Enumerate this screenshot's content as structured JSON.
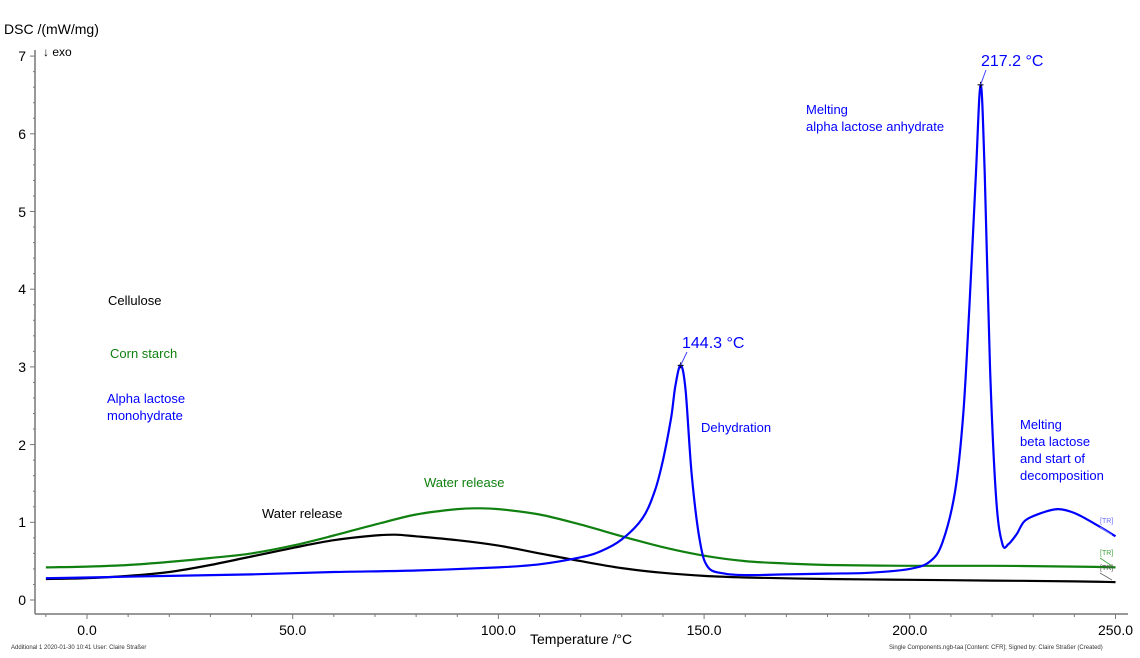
{
  "chart_data": {
    "type": "line",
    "title": "",
    "xlabel": "Temperature /°C",
    "ylabel": "DSC /(mW/mg)",
    "y_direction_note": "↓ exo",
    "xlim": [
      -10,
      252
    ],
    "ylim": [
      0,
      7
    ],
    "x_ticks": [
      "0.0",
      "50.0",
      "100.0",
      "150.0",
      "200.0",
      "250.0"
    ],
    "y_ticks": [
      "0",
      "1",
      "2",
      "3",
      "4",
      "5",
      "6",
      "7"
    ],
    "grid": false,
    "colors": {
      "cellulose": "#000000",
      "corn_starch": "#108010",
      "lactose": "#0000ff"
    },
    "series": [
      {
        "name": "Cellulose",
        "color": "#000000",
        "x": [
          -10,
          0,
          10,
          20,
          30,
          40,
          50,
          60,
          70,
          75,
          80,
          90,
          100,
          110,
          120,
          130,
          140,
          150,
          160,
          180,
          200,
          220,
          240,
          250
        ],
        "y": [
          0.27,
          0.28,
          0.31,
          0.36,
          0.45,
          0.56,
          0.67,
          0.77,
          0.83,
          0.84,
          0.82,
          0.77,
          0.7,
          0.6,
          0.5,
          0.41,
          0.35,
          0.31,
          0.29,
          0.27,
          0.26,
          0.25,
          0.24,
          0.23
        ]
      },
      {
        "name": "Corn starch",
        "color": "#108010",
        "x": [
          -10,
          0,
          10,
          20,
          30,
          40,
          50,
          60,
          70,
          80,
          90,
          95,
          100,
          110,
          120,
          130,
          140,
          150,
          160,
          170,
          180,
          200,
          220,
          240,
          250
        ],
        "y": [
          0.42,
          0.43,
          0.45,
          0.49,
          0.54,
          0.6,
          0.7,
          0.83,
          0.97,
          1.1,
          1.17,
          1.18,
          1.17,
          1.1,
          0.97,
          0.82,
          0.68,
          0.57,
          0.5,
          0.47,
          0.45,
          0.44,
          0.44,
          0.43,
          0.42
        ]
      },
      {
        "name": "Alpha lactose monohydrate",
        "color": "#0000ff",
        "x": [
          -10,
          0,
          20,
          40,
          60,
          80,
          100,
          110,
          120,
          125,
          130,
          135,
          138,
          140,
          142,
          143,
          144.3,
          145.5,
          147,
          149,
          151,
          155,
          160,
          170,
          180,
          190,
          200,
          205,
          208,
          211,
          213,
          214.5,
          216,
          217.2,
          218.2,
          219.5,
          221,
          222.5,
          224,
          226,
          228,
          232,
          236,
          240,
          245,
          250
        ],
        "y": [
          0.28,
          0.29,
          0.31,
          0.33,
          0.36,
          0.38,
          0.42,
          0.46,
          0.55,
          0.63,
          0.78,
          1.05,
          1.4,
          1.8,
          2.35,
          2.75,
          3.02,
          2.7,
          1.6,
          0.75,
          0.42,
          0.34,
          0.32,
          0.33,
          0.34,
          0.35,
          0.4,
          0.5,
          0.75,
          1.4,
          2.4,
          3.8,
          5.4,
          6.63,
          5.5,
          3.0,
          1.3,
          0.72,
          0.72,
          0.85,
          1.02,
          1.12,
          1.17,
          1.12,
          0.98,
          0.82
        ]
      }
    ],
    "annotations": [
      {
        "text": "144.3 °C",
        "x": 144.3,
        "y": 3.02,
        "type": "peak"
      },
      {
        "text": "217.2 °C",
        "x": 217.2,
        "y": 6.63,
        "type": "peak"
      },
      {
        "text": "Dehydration"
      },
      {
        "text": "Melting\nalpha lactose anhydrate"
      },
      {
        "text": "Melting\nbeta lactose\nand start of\ndecomposition"
      },
      {
        "text": "Water release",
        "series": "Cellulose"
      },
      {
        "text": "Water release",
        "series": "Corn starch"
      }
    ]
  },
  "labels": {
    "ylabel": "DSC /(mW/mg)",
    "exo": "↓ exo",
    "xlabel": "Temperature /°C",
    "legend_cellulose": "Cellulose",
    "legend_corn": "Corn starch",
    "legend_lactose": "Alpha lactose\nmonohydrate",
    "peak1": "144.3 °C",
    "peak2": "217.2 °C",
    "dehydration": "Dehydration",
    "melting_alpha": "Melting\nalpha lactose anhydrate",
    "melting_beta": "Melting\nbeta lactose\nand start of\ndecomposition",
    "water_cellulose": "Water release",
    "water_corn": "Water release",
    "tr": "[TR]"
  },
  "footer": {
    "left": "Additional 1    2020-01-30 10:41    User: Claire Straßer",
    "right": "Single Components.ngb-taa [Content: CFR]; Signed by: Claire Straßer (Created)"
  }
}
